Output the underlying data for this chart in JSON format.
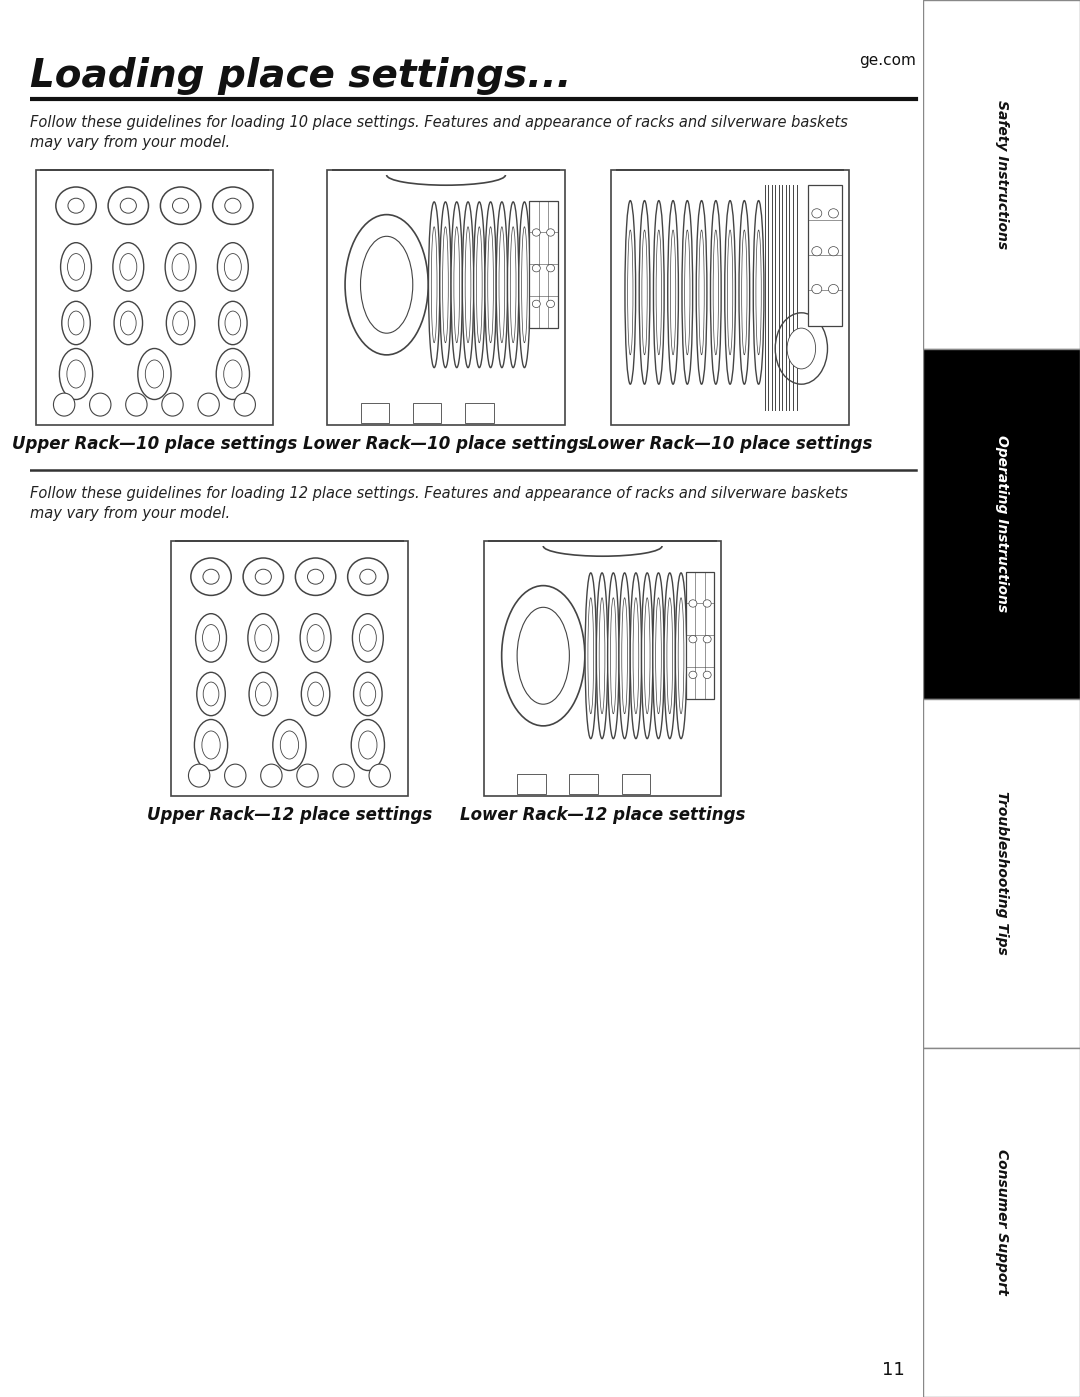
{
  "title": "Loading place settings...",
  "title_website": "ge.com",
  "subtitle_10": "Follow these guidelines for loading 10 place settings. Features and appearance of racks and silverware baskets\nmay vary from your model.",
  "subtitle_12": "Follow these guidelines for loading 12 place settings. Features and appearance of racks and silverware baskets\nmay vary from your model.",
  "label_upper_10": "Upper Rack—10 place settings",
  "label_lower_10a": "Lower Rack—10 place settings",
  "label_lower_10b": "Lower Rack—10 place settings",
  "label_upper_12": "Upper Rack—12 place settings",
  "label_lower_12": "Lower Rack—12 place settings",
  "sidebar_labels": [
    "Safety Instructions",
    "Operating Instructions",
    "Troubleshooting Tips",
    "Consumer Support"
  ],
  "sidebar_active_index": 1,
  "page_number": "11",
  "bg_color": "#ffffff",
  "sidebar_bg": "#000000",
  "sidebar_text_active": "#ffffff",
  "sidebar_text_inactive": "#111111",
  "line_color": "#222222",
  "draw_color": "#444444"
}
